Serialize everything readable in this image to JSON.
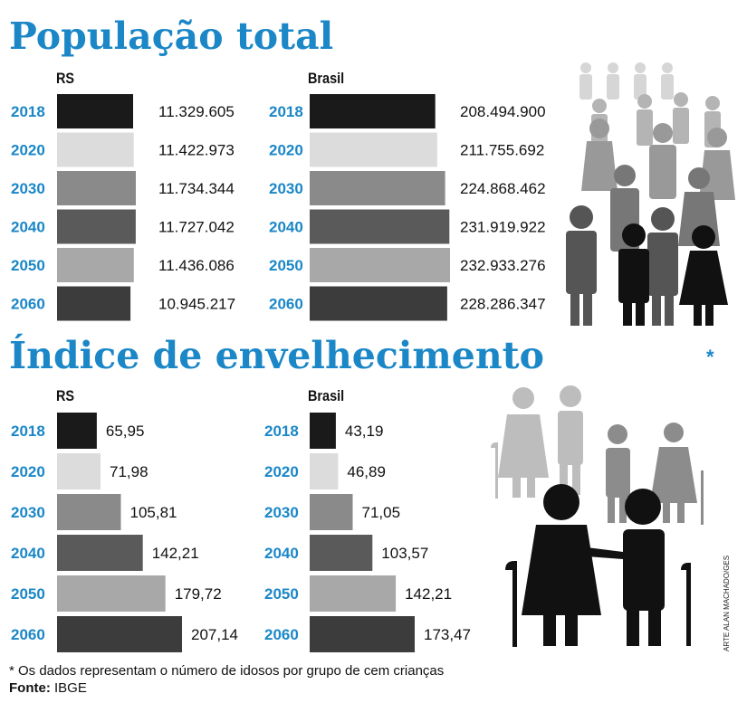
{
  "colors": {
    "accent": "#1b87c7",
    "text": "#111111",
    "years": {
      "2018": "#1a1a1a",
      "2020": "#dcdcdc",
      "2030": "#8a8a8a",
      "2040": "#5a5a5a",
      "2050": "#a8a8a8",
      "2060": "#3c3c3c"
    }
  },
  "sections": {
    "population": {
      "title": "População total"
    },
    "aging": {
      "title": "Índice de envelhecimento",
      "asterisk": "*"
    }
  },
  "footer": {
    "note": "* Os dados representam o número de idosos por grupo de cem crianças",
    "source_label": "Fonte:",
    "source_value": "IBGE"
  },
  "credit": "ARTE ALAN MACHADO/GES",
  "chart_data": [
    {
      "type": "bar",
      "orientation": "horizontal",
      "section": "População total",
      "title": "RS",
      "categories": [
        "2018",
        "2020",
        "2030",
        "2040",
        "2050",
        "2060"
      ],
      "values": [
        11329605,
        11422973,
        11734344,
        11727042,
        11436086,
        10945217
      ],
      "labels": [
        "11.329.605",
        "11.422.973",
        "11.734.344",
        "11.727.042",
        "11.436.086",
        "10.945.217"
      ]
    },
    {
      "type": "bar",
      "orientation": "horizontal",
      "section": "População total",
      "title": "Brasil",
      "categories": [
        "2018",
        "2020",
        "2030",
        "2040",
        "2050",
        "2060"
      ],
      "values": [
        208494900,
        211755692,
        224868462,
        231919922,
        232933276,
        228286347
      ],
      "labels": [
        "208.494.900",
        "211.755.692",
        "224.868.462",
        "231.919.922",
        "232.933.276",
        "228.286.347"
      ]
    },
    {
      "type": "bar",
      "orientation": "horizontal",
      "section": "Índice de envelhecimento",
      "title": "RS",
      "categories": [
        "2018",
        "2020",
        "2030",
        "2040",
        "2050",
        "2060"
      ],
      "values": [
        65.95,
        71.98,
        105.81,
        142.21,
        179.72,
        207.14
      ],
      "labels": [
        "65,95",
        "71,98",
        "105,81",
        "142,21",
        "179,72",
        "207,14"
      ]
    },
    {
      "type": "bar",
      "orientation": "horizontal",
      "section": "Índice de envelhecimento",
      "title": "Brasil",
      "categories": [
        "2018",
        "2020",
        "2030",
        "2040",
        "2050",
        "2060"
      ],
      "values": [
        43.19,
        46.89,
        71.05,
        103.57,
        142.21,
        173.47
      ],
      "labels": [
        "43,19",
        "46,89",
        "71,05",
        "103,57",
        "142,21",
        "173,47"
      ]
    }
  ]
}
